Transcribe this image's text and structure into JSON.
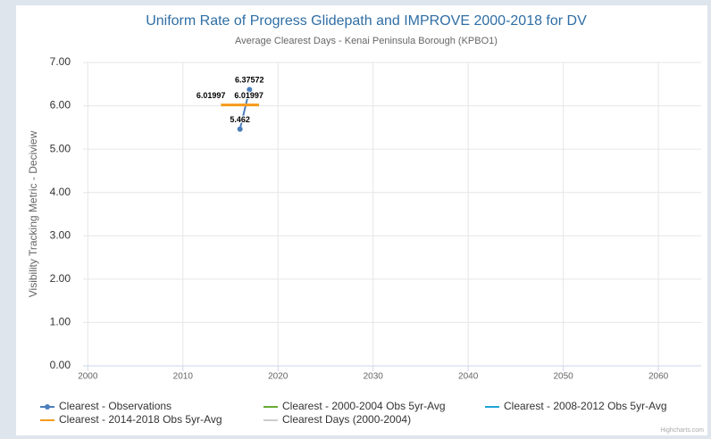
{
  "chart_data": {
    "type": "line",
    "title": "Uniform Rate of Progress Glidepath and IMPROVE 2000-2018 for DV",
    "subtitle": "Average Clearest Days - Kenai Peninsula Borough (KPBO1)",
    "y_axis_label": "Visibility Tracking Metric - Deciview",
    "credits": "Highcharts.com",
    "xlim": [
      1999.5,
      2064.5
    ],
    "xticks": [
      2000,
      2010,
      2020,
      2030,
      2040,
      2050,
      2060
    ],
    "ylim": [
      0,
      7
    ],
    "yticks": [
      {
        "value": 0,
        "label": "0.00"
      },
      {
        "value": 1,
        "label": "1.00"
      },
      {
        "value": 2,
        "label": "2.00"
      },
      {
        "value": 3,
        "label": "3.00"
      },
      {
        "value": 4,
        "label": "4.00"
      },
      {
        "value": 5,
        "label": "5.00"
      },
      {
        "value": 6,
        "label": "6.00"
      },
      {
        "value": 7,
        "label": "7.00"
      }
    ],
    "grid": true,
    "legend": "bottom",
    "series": [
      {
        "name": "Clearest - Observations",
        "color": "#4a7ebb",
        "marker": true,
        "x": [
          2016,
          2017
        ],
        "values": [
          5.462,
          6.37572
        ]
      },
      {
        "name": "Clearest - 2000-2004 Obs 5yr-Avg",
        "color": "#66aa33",
        "x": [],
        "values": []
      },
      {
        "name": "Clearest - 2008-2012 Obs 5yr-Avg",
        "color": "#1fa3d6",
        "x": [],
        "values": []
      },
      {
        "name": "Clearest - 2014-2018 Obs 5yr-Avg",
        "color": "#f59a1b",
        "x": [
          2014,
          2018
        ],
        "values": [
          6.01997,
          6.01997
        ]
      },
      {
        "name": "Clearest Days (2000-2004)",
        "color": "#cccccc",
        "x": [],
        "values": []
      }
    ]
  }
}
